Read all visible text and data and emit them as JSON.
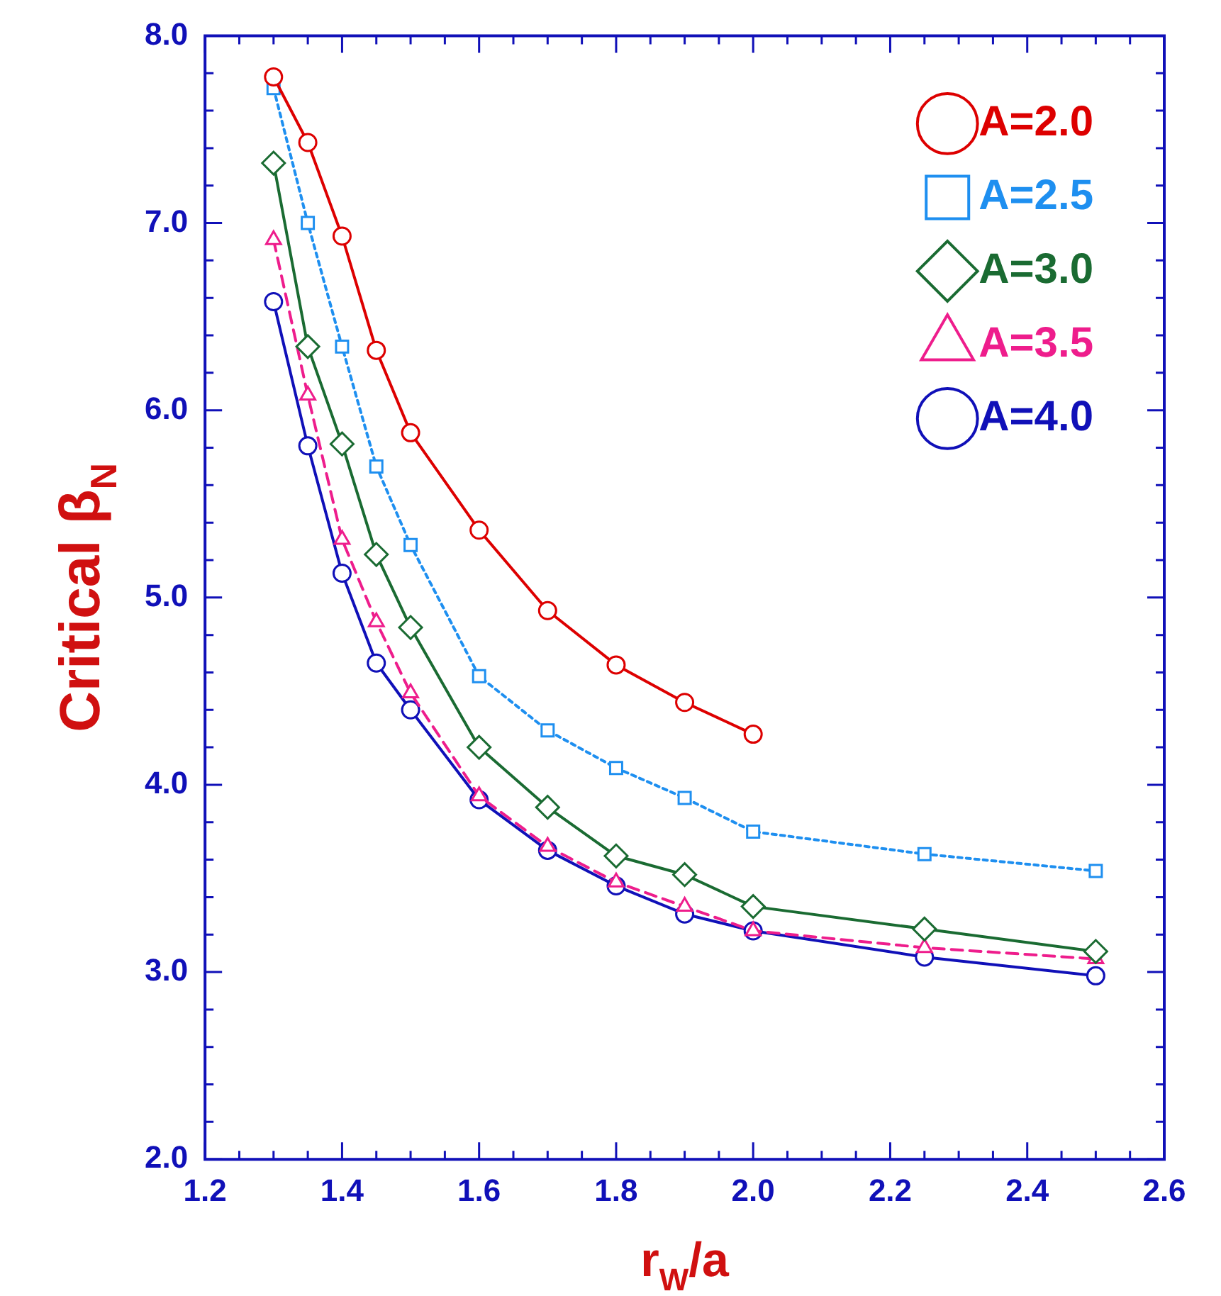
{
  "chart_data": {
    "type": "line",
    "xlabel": "r$_{W}$/a",
    "ylabel": "Critical β$_{N}$",
    "xlim": [
      1.2,
      2.6
    ],
    "xticks": [
      {
        "value": 1.2,
        "label": "1.2"
      },
      {
        "value": 1.4,
        "label": "1.4"
      },
      {
        "value": 1.6,
        "label": "1.6"
      },
      {
        "value": 1.8,
        "label": "1.8"
      },
      {
        "value": 2.0,
        "label": "2.0"
      },
      {
        "value": 2.2,
        "label": "2.2"
      },
      {
        "value": 2.4,
        "label": "2.4"
      },
      {
        "value": 2.6,
        "label": "2.6"
      }
    ],
    "ylim": [
      2,
      8
    ],
    "yticks": [
      {
        "value": 2,
        "label": "2.0"
      },
      {
        "value": 3,
        "label": "3.0"
      },
      {
        "value": 4,
        "label": "4.0"
      },
      {
        "value": 5,
        "label": "5.0"
      },
      {
        "value": 6,
        "label": "6.0"
      },
      {
        "value": 7,
        "label": "7.0"
      },
      {
        "value": 8,
        "label": "8.0"
      }
    ],
    "grid": false,
    "legend": "top right",
    "series": [
      {
        "name": "A=2.0",
        "color": "#dd0000",
        "marker": "circle",
        "line_style": "solid",
        "x": [
          1.3,
          1.35,
          1.4,
          1.45,
          1.5,
          1.6,
          1.7,
          1.8,
          1.9,
          2.0
        ],
        "values": [
          7.78,
          7.43,
          6.93,
          6.32,
          5.88,
          5.36,
          4.93,
          4.64,
          4.44,
          4.27
        ]
      },
      {
        "name": "A=2.5",
        "color": "#1e8ff0",
        "marker": "square",
        "line_style": "dotted",
        "x": [
          1.3,
          1.35,
          1.4,
          1.45,
          1.5,
          1.6,
          1.7,
          1.8,
          1.9,
          2.0,
          2.25,
          2.5
        ],
        "values": [
          7.72,
          7.0,
          6.34,
          5.7,
          5.28,
          4.58,
          4.29,
          4.09,
          3.93,
          3.75,
          3.63,
          3.54
        ]
      },
      {
        "name": "A=3.0",
        "color": "#1a6b32",
        "marker": "diamond",
        "line_style": "solid",
        "x": [
          1.3,
          1.35,
          1.4,
          1.45,
          1.5,
          1.6,
          1.7,
          1.8,
          1.9,
          2.0,
          2.25,
          2.5
        ],
        "values": [
          7.32,
          6.34,
          5.82,
          5.23,
          4.84,
          4.2,
          3.88,
          3.62,
          3.52,
          3.35,
          3.23,
          3.11
        ]
      },
      {
        "name": "A=3.5",
        "color": "#ee1d8c",
        "marker": "triangle",
        "line_style": "dashed",
        "x": [
          1.3,
          1.35,
          1.4,
          1.45,
          1.5,
          1.6,
          1.7,
          1.8,
          1.9,
          2.0,
          2.25,
          2.5
        ],
        "values": [
          6.91,
          6.08,
          5.31,
          4.87,
          4.49,
          3.94,
          3.67,
          3.48,
          3.35,
          3.22,
          3.13,
          3.07
        ]
      },
      {
        "name": "A=4.0",
        "color": "#1010b8",
        "marker": "circle",
        "line_style": "solid",
        "x": [
          1.3,
          1.35,
          1.4,
          1.45,
          1.5,
          1.6,
          1.7,
          1.8,
          1.9,
          2.0,
          2.25,
          2.5
        ],
        "values": [
          6.58,
          5.81,
          5.13,
          4.65,
          4.4,
          3.92,
          3.65,
          3.46,
          3.31,
          3.22,
          3.08,
          2.98
        ]
      }
    ]
  }
}
